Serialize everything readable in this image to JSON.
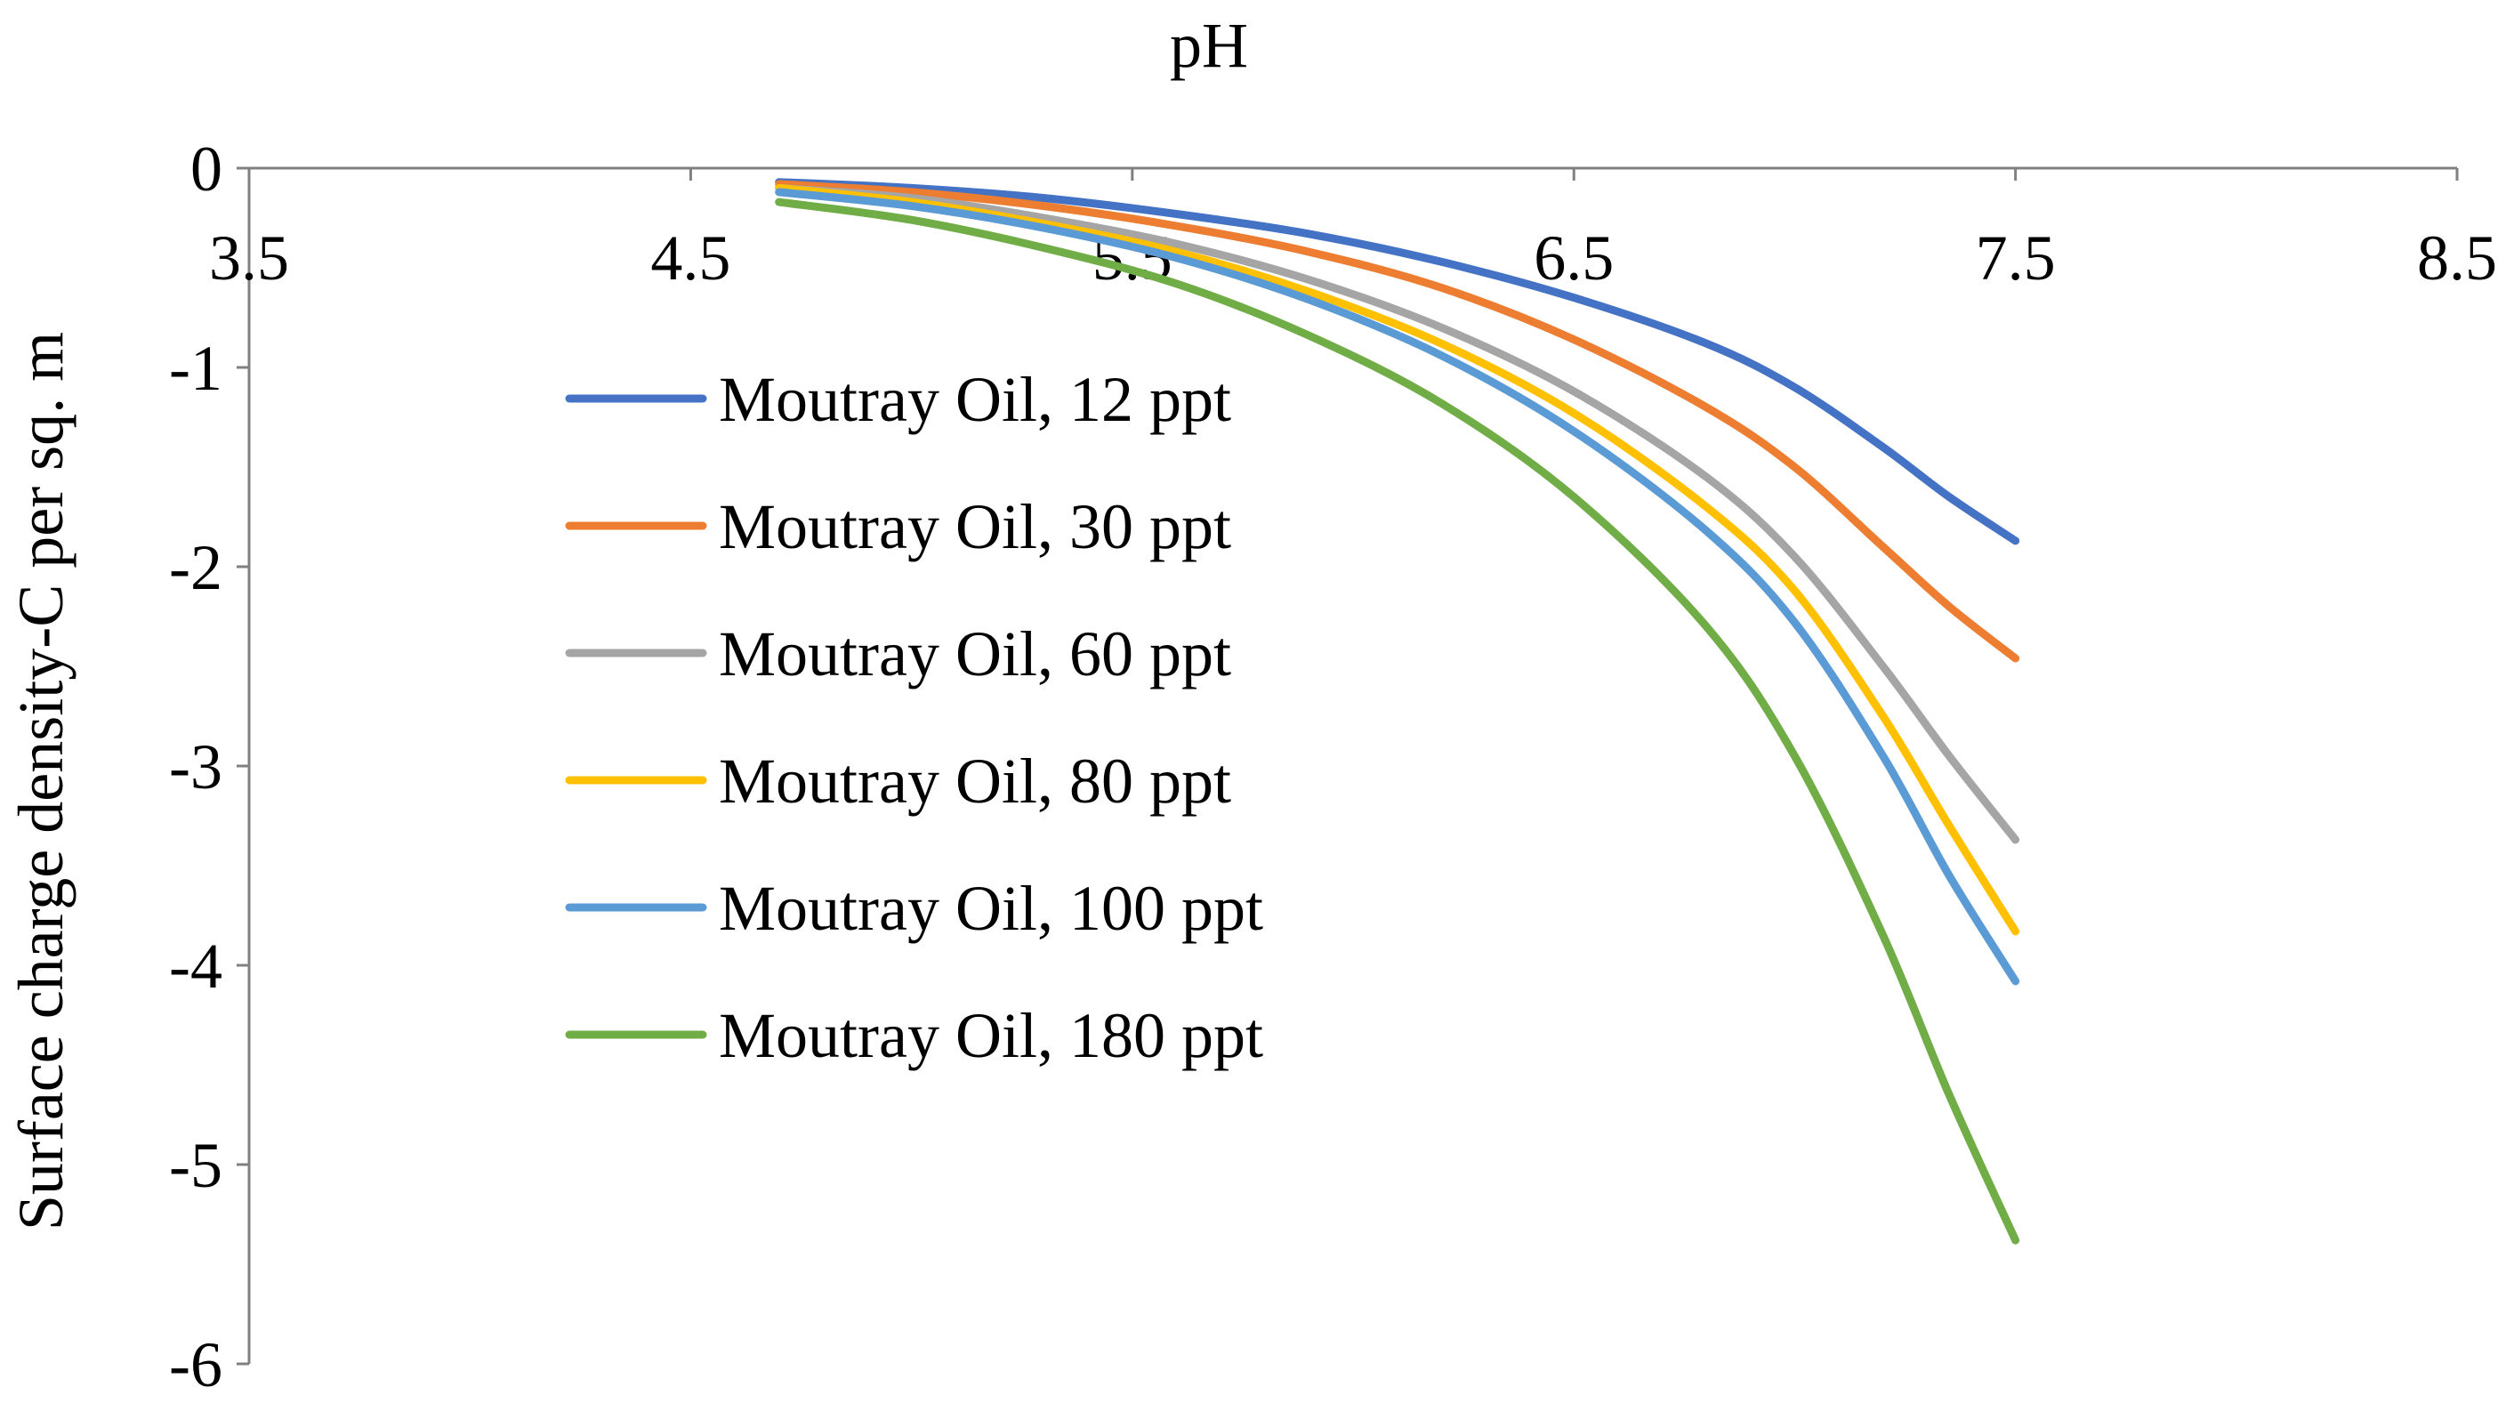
{
  "chart_data": {
    "type": "line",
    "title": "",
    "xlabel": "pH",
    "ylabel": "Surface charge density-C per sq. m",
    "xlim": [
      3.5,
      8.5
    ],
    "ylim": [
      -6,
      0
    ],
    "x_ticks": [
      "3.5",
      "4.5",
      "5.5",
      "6.5",
      "7.5",
      "8.5"
    ],
    "y_ticks": [
      "0",
      "-1",
      "-2",
      "-3",
      "-4",
      "-5",
      "-6"
    ],
    "x_axis_position": "top",
    "grid": false,
    "legend_position": "center-left",
    "x": [
      4.7,
      5.0,
      5.3,
      5.6,
      5.9,
      6.2,
      6.5,
      6.8,
      7.0,
      7.2,
      7.35,
      7.5
    ],
    "series": [
      {
        "name": "Moutray Oil, 12 ppt",
        "color": "#4472C4",
        "values": [
          -0.07,
          -0.1,
          -0.15,
          -0.23,
          -0.33,
          -0.47,
          -0.65,
          -0.88,
          -1.1,
          -1.4,
          -1.65,
          -1.87
        ]
      },
      {
        "name": "Moutray Oil, 30 ppt",
        "color": "#ED7D31",
        "values": [
          -0.08,
          -0.12,
          -0.19,
          -0.29,
          -0.42,
          -0.6,
          -0.86,
          -1.2,
          -1.5,
          -1.9,
          -2.2,
          -2.46
        ]
      },
      {
        "name": "Moutray Oil, 60 ppt",
        "color": "#A5A5A5",
        "values": [
          -0.1,
          -0.15,
          -0.25,
          -0.38,
          -0.56,
          -0.8,
          -1.12,
          -1.55,
          -1.95,
          -2.5,
          -2.95,
          -3.37
        ]
      },
      {
        "name": "Moutray Oil, 80 ppt",
        "color": "#FFC000",
        "values": [
          -0.1,
          -0.17,
          -0.28,
          -0.42,
          -0.62,
          -0.88,
          -1.23,
          -1.7,
          -2.12,
          -2.75,
          -3.3,
          -3.83
        ]
      },
      {
        "name": "Moutray Oil, 100 ppt",
        "color": "#5B9BD5",
        "values": [
          -0.12,
          -0.19,
          -0.3,
          -0.45,
          -0.66,
          -0.94,
          -1.32,
          -1.82,
          -2.28,
          -2.95,
          -3.55,
          -4.08
        ]
      },
      {
        "name": "Moutray Oil, 180 ppt",
        "color": "#70AD47",
        "values": [
          -0.17,
          -0.26,
          -0.4,
          -0.58,
          -0.84,
          -1.18,
          -1.65,
          -2.3,
          -2.95,
          -3.85,
          -4.65,
          -5.38
        ]
      }
    ]
  }
}
